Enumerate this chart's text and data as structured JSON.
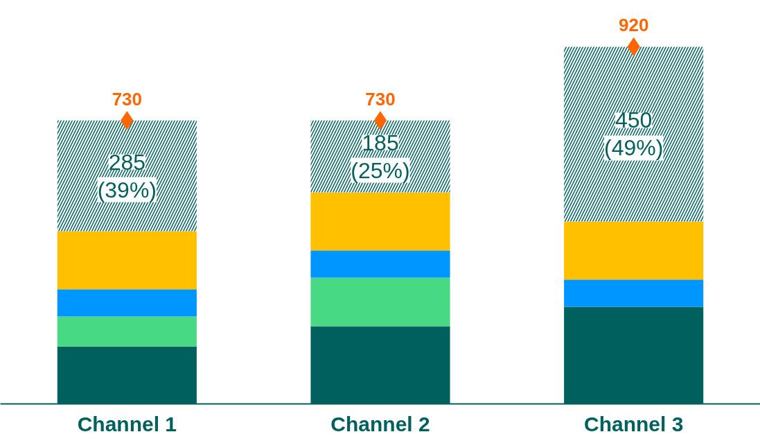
{
  "chart_data": {
    "type": "bar",
    "stacked": true,
    "categories": [
      "Channel 1",
      "Channel 2",
      "Channel 3"
    ],
    "tick_labels": "x",
    "grid": false,
    "series": [
      {
        "color": "#00605e",
        "values": [
          148,
          200,
          250
        ]
      },
      {
        "color": "#48d984",
        "values": [
          77,
          125,
          0
        ]
      },
      {
        "color": "#0096ff",
        "values": [
          70,
          70,
          70
        ]
      },
      {
        "color": "#ffc000",
        "values": [
          150,
          150,
          150
        ]
      },
      {
        "color": "#00605e",
        "values": [
          285,
          185,
          450
        ],
        "value_labels": [
          "285\n(39%)",
          "185\n(25%)",
          "450\n(49%)"
        ]
      },
      {
        "type": "scatter",
        "marker": "diamond",
        "color": "#ff6600",
        "x": [
          "Channel 1",
          "Channel 2",
          "Channel 3"
        ],
        "values": [
          730,
          730,
          920
        ],
        "value_labels": [
          "730",
          "730",
          "920"
        ]
      }
    ]
  }
}
